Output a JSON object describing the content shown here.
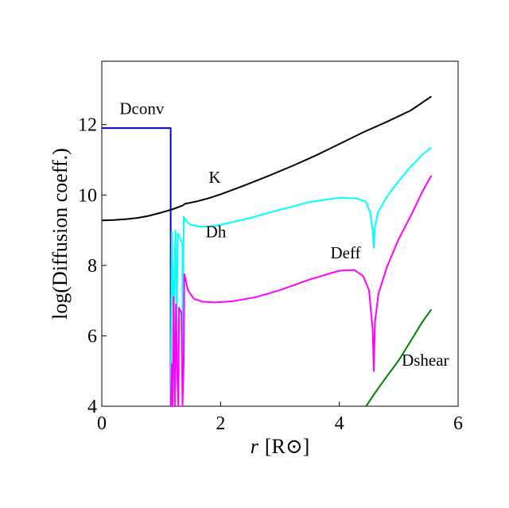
{
  "chart_data": {
    "type": "line",
    "title": "",
    "xlabel_italic": "r",
    "xlabel_rest": "[R⊙]",
    "ylabel": "log(Diffusion coeff.)",
    "xlim": [
      0,
      6
    ],
    "ylim": [
      4,
      13.8
    ],
    "xticks": [
      0,
      2,
      4,
      6
    ],
    "yticks": [
      4,
      6,
      8,
      10,
      12
    ],
    "grid": false,
    "series": [
      {
        "name": "Dconv",
        "color": "#0000cc",
        "label_at": [
          0.3,
          12.3
        ],
        "points": [
          [
            0,
            11.9
          ],
          [
            1.16,
            11.9
          ],
          [
            1.16,
            4.0
          ]
        ]
      },
      {
        "name": "K",
        "color": "#000000",
        "label_at": [
          1.8,
          10.35
        ],
        "points": [
          [
            0,
            9.28
          ],
          [
            0.2,
            9.29
          ],
          [
            0.4,
            9.31
          ],
          [
            0.6,
            9.35
          ],
          [
            0.8,
            9.41
          ],
          [
            1.0,
            9.5
          ],
          [
            1.2,
            9.6
          ],
          [
            1.36,
            9.7
          ],
          [
            1.4,
            9.75
          ],
          [
            1.6,
            9.82
          ],
          [
            1.8,
            9.91
          ],
          [
            2.0,
            10.02
          ],
          [
            2.4,
            10.27
          ],
          [
            2.8,
            10.54
          ],
          [
            3.2,
            10.82
          ],
          [
            3.6,
            11.12
          ],
          [
            4.0,
            11.45
          ],
          [
            4.4,
            11.78
          ],
          [
            4.8,
            12.08
          ],
          [
            5.2,
            12.4
          ],
          [
            5.55,
            12.8
          ]
        ]
      },
      {
        "name": "Dh",
        "color": "#00ffff",
        "label_at": [
          1.75,
          8.8
        ],
        "points": [
          [
            1.16,
            4.0
          ],
          [
            1.18,
            8.95
          ],
          [
            1.21,
            6.5
          ],
          [
            1.24,
            9.0
          ],
          [
            1.26,
            6.3
          ],
          [
            1.28,
            8.9
          ],
          [
            1.32,
            8.75
          ],
          [
            1.36,
            8.6
          ],
          [
            1.36,
            4.0
          ],
          [
            1.38,
            9.38
          ],
          [
            1.42,
            9.25
          ],
          [
            1.5,
            9.15
          ],
          [
            1.65,
            9.1
          ],
          [
            1.8,
            9.1
          ],
          [
            2.0,
            9.15
          ],
          [
            2.5,
            9.35
          ],
          [
            3.0,
            9.58
          ],
          [
            3.5,
            9.8
          ],
          [
            4.0,
            9.92
          ],
          [
            4.3,
            9.9
          ],
          [
            4.45,
            9.8
          ],
          [
            4.52,
            9.5
          ],
          [
            4.56,
            9.0
          ],
          [
            4.58,
            8.5
          ],
          [
            4.6,
            9.1
          ],
          [
            4.65,
            9.5
          ],
          [
            4.8,
            9.95
          ],
          [
            5.0,
            10.4
          ],
          [
            5.2,
            10.8
          ],
          [
            5.4,
            11.15
          ],
          [
            5.55,
            11.35
          ]
        ]
      },
      {
        "name": "Deff",
        "color": "#ff00ff",
        "label_at": [
          3.85,
          8.2
        ],
        "points": [
          [
            1.16,
            4.0
          ],
          [
            1.18,
            5.2
          ],
          [
            1.19,
            4.0
          ],
          [
            1.21,
            7.1
          ],
          [
            1.23,
            4.0
          ],
          [
            1.25,
            6.9
          ],
          [
            1.27,
            4.9
          ],
          [
            1.29,
            4.0
          ],
          [
            1.3,
            6.8
          ],
          [
            1.34,
            6.65
          ],
          [
            1.36,
            4.0
          ],
          [
            1.38,
            5.25
          ],
          [
            1.39,
            7.75
          ],
          [
            1.45,
            7.3
          ],
          [
            1.55,
            7.05
          ],
          [
            1.7,
            6.97
          ],
          [
            1.9,
            6.95
          ],
          [
            2.2,
            6.98
          ],
          [
            2.6,
            7.1
          ],
          [
            3.0,
            7.3
          ],
          [
            3.5,
            7.6
          ],
          [
            4.0,
            7.85
          ],
          [
            4.25,
            7.87
          ],
          [
            4.4,
            7.7
          ],
          [
            4.5,
            7.3
          ],
          [
            4.56,
            6.2
          ],
          [
            4.58,
            5.0
          ],
          [
            4.6,
            6.4
          ],
          [
            4.66,
            7.2
          ],
          [
            4.8,
            7.95
          ],
          [
            5.0,
            8.75
          ],
          [
            5.2,
            9.4
          ],
          [
            5.4,
            10.1
          ],
          [
            5.55,
            10.55
          ]
        ]
      },
      {
        "name": "Dshear",
        "color": "#008000",
        "label_at": [
          5.05,
          5.15
        ],
        "points": [
          [
            4.45,
            4.0
          ],
          [
            4.55,
            4.25
          ],
          [
            4.65,
            4.5
          ],
          [
            4.8,
            4.85
          ],
          [
            5.0,
            5.3
          ],
          [
            5.2,
            5.85
          ],
          [
            5.4,
            6.4
          ],
          [
            5.55,
            6.75
          ]
        ]
      }
    ]
  }
}
